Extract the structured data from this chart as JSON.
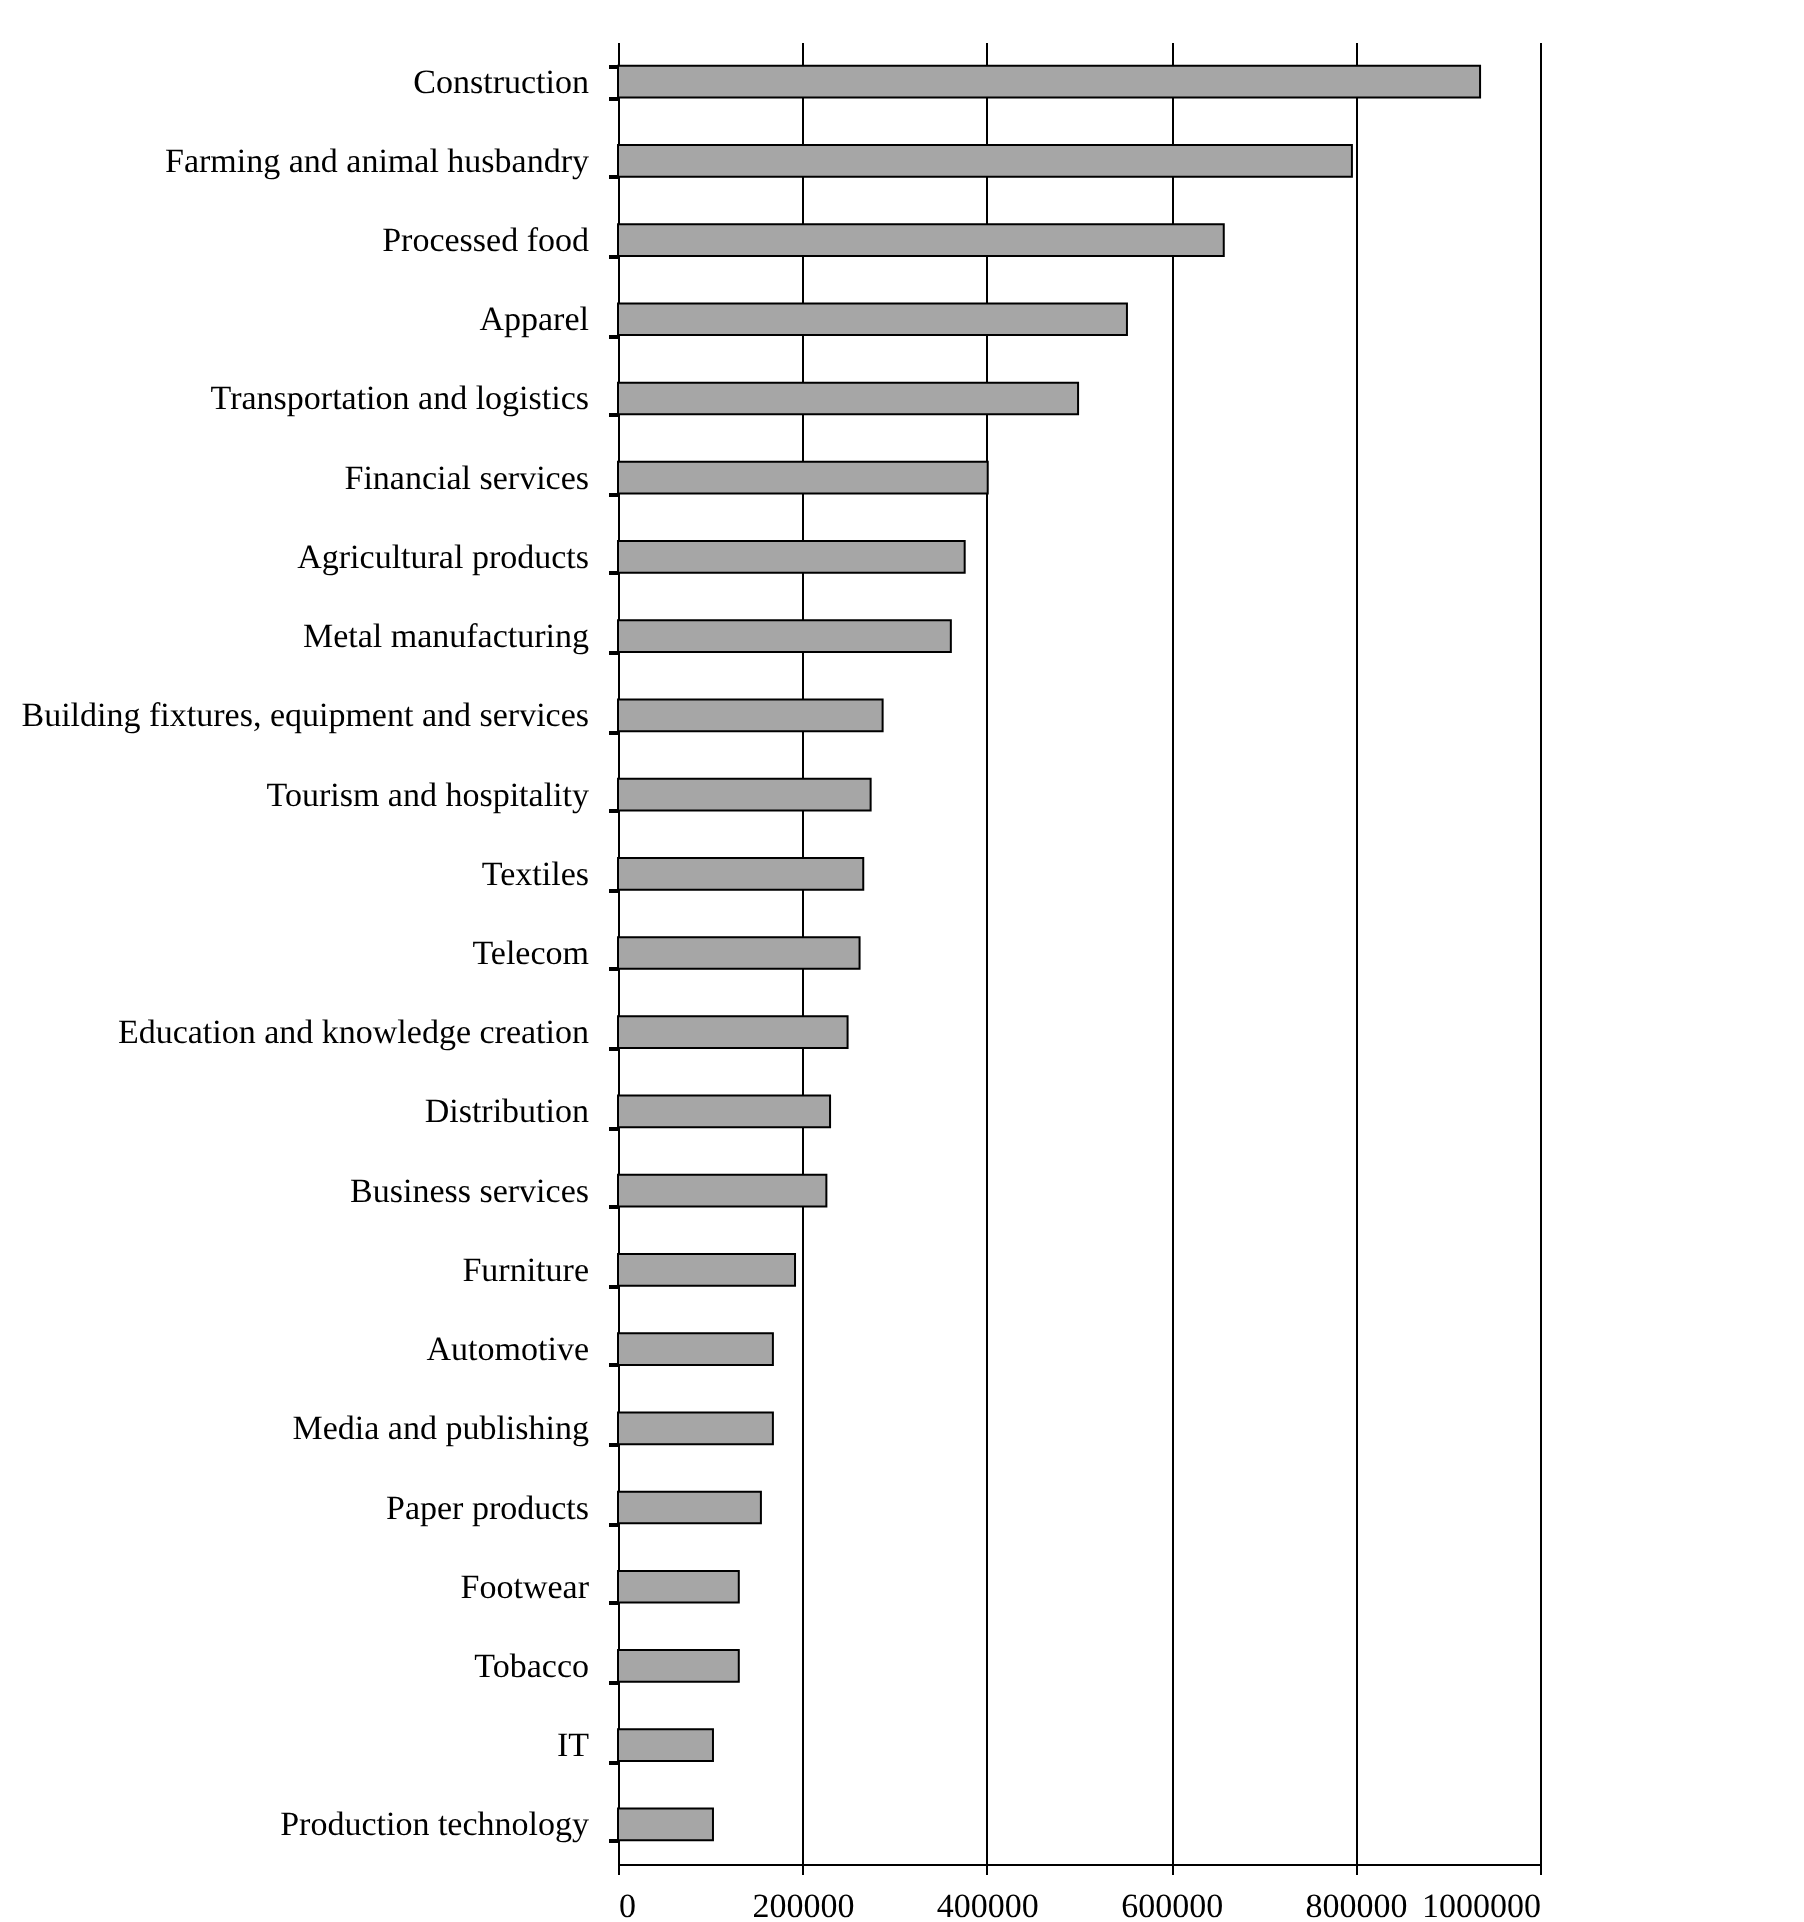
{
  "chart_data": {
    "type": "bar",
    "orientation": "horizontal",
    "categories": [
      "Construction",
      "Farming and animal husbandry",
      "Processed food",
      "Apparel",
      "Transportation and logistics",
      "Financial services",
      "Agricultural products",
      "Metal manufacturing",
      "Building fixtures,  equipment and services",
      "Tourism and hospitality",
      "Textiles",
      "Telecom",
      "Education and knowledge creation",
      "Distribution",
      "Business services",
      "Furniture",
      "Automotive",
      "Media and publishing",
      "Paper products",
      "Footwear",
      "Tobacco",
      "IT",
      "Production technology"
    ],
    "values": [
      935000,
      796000,
      657000,
      552000,
      499000,
      401000,
      376000,
      361000,
      287000,
      274000,
      266000,
      262000,
      249000,
      230000,
      226000,
      192000,
      168000,
      168000,
      155000,
      131000,
      131000,
      103000,
      103000
    ],
    "color": "#a6a6a6",
    "xlim": [
      0,
      1000000
    ],
    "xticks": [
      0,
      200000,
      400000,
      600000,
      800000,
      1000000
    ],
    "grid": "x"
  }
}
